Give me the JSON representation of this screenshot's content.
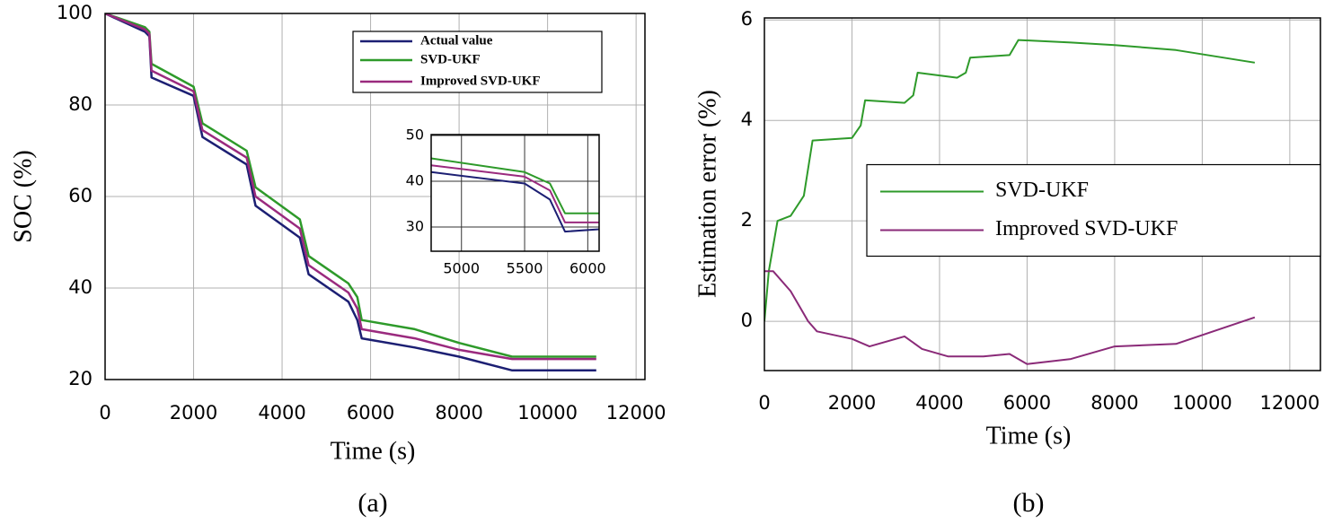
{
  "chart_data": [
    {
      "type": "line",
      "caption": "(a)",
      "xlabel": "Time (s)",
      "ylabel": "SOC (%)",
      "x": [
        0,
        900,
        1000,
        1050,
        2000,
        2200,
        3200,
        3400,
        4400,
        4600,
        5500,
        5700,
        5800,
        7000,
        8000,
        9200,
        11100
      ],
      "series": [
        {
          "name": "Actual value",
          "color": "#1c1f73",
          "values": [
            100,
            96,
            95,
            86,
            82,
            73,
            67,
            58,
            51,
            43,
            37,
            33,
            29,
            27,
            25,
            22,
            22
          ]
        },
        {
          "name": "SVD-UKF",
          "color": "#2e9a2a",
          "values": [
            100,
            97,
            96,
            89,
            84,
            76,
            70,
            62,
            55,
            47,
            41,
            38,
            33,
            31,
            28,
            25,
            25
          ]
        },
        {
          "name": "Improved SVD-UKF",
          "color": "#9a2a7e",
          "values": [
            100,
            96.5,
            95.5,
            87.5,
            83,
            74.5,
            68.5,
            60,
            53,
            45,
            39,
            35.5,
            31,
            29,
            26.5,
            24.5,
            24.5
          ]
        }
      ],
      "xlim": [
        0,
        12200
      ],
      "xticks": [
        0,
        2000,
        4000,
        6000,
        8000,
        10000,
        12000
      ],
      "ylim": [
        20,
        100
      ],
      "yticks": [
        20,
        40,
        60,
        80,
        100
      ],
      "grid": true,
      "legend": "upper right"
    },
    {
      "type": "line",
      "x": [
        4760,
        5500,
        5700,
        5820,
        6090
      ],
      "series": [
        {
          "name": "Actual value",
          "color": "#1c1f73",
          "values": [
            42,
            39.5,
            36,
            29,
            29.5
          ]
        },
        {
          "name": "SVD-UKF",
          "color": "#2e9a2a",
          "values": [
            45,
            42,
            39.5,
            33,
            33
          ]
        },
        {
          "name": "Improved SVD-UKF",
          "color": "#9a2a7e",
          "values": [
            43.5,
            41,
            38,
            31,
            31
          ]
        }
      ],
      "xlim": [
        4760,
        6090
      ],
      "xticks": [
        5000,
        5500,
        6000
      ],
      "ylim": [
        24.7,
        50.2
      ],
      "yticks": [
        30,
        40,
        50
      ],
      "grid": true
    },
    {
      "type": "line",
      "caption": "(b)",
      "xlabel": "Time (s)",
      "ylabel": "Estimation error (%)",
      "series": [
        {
          "name": "SVD-UKF",
          "color": "#2e9a2a",
          "x": [
            0,
            100,
            300,
            600,
            900,
            1100,
            2000,
            2200,
            2300,
            3200,
            3400,
            3500,
            4400,
            4600,
            4700,
            5600,
            5800,
            7000,
            8000,
            9400,
            11200
          ],
          "values": [
            0,
            1.0,
            2.0,
            2.1,
            2.5,
            3.6,
            3.65,
            3.9,
            4.4,
            4.35,
            4.5,
            4.95,
            4.85,
            4.95,
            5.25,
            5.3,
            5.6,
            5.55,
            5.5,
            5.4,
            5.15
          ]
        },
        {
          "name": "Improved SVD-UKF",
          "color": "#8a2a78",
          "x": [
            0,
            200,
            600,
            1000,
            1200,
            2000,
            2400,
            3200,
            3600,
            4200,
            5000,
            5600,
            6000,
            7000,
            8000,
            9400,
            11200
          ],
          "values": [
            1.0,
            1.0,
            0.6,
            0.0,
            -0.2,
            -0.35,
            -0.5,
            -0.3,
            -0.55,
            -0.7,
            -0.7,
            -0.65,
            -0.85,
            -0.75,
            -0.5,
            -0.45,
            0.08
          ]
        }
      ],
      "xlim": [
        0,
        12700
      ],
      "xticks": [
        0,
        2000,
        4000,
        6000,
        8000,
        10000,
        12000
      ],
      "ylim": [
        -0.98,
        6.04
      ],
      "yticks": [
        0,
        2,
        4,
        6
      ],
      "grid": true,
      "legend": "center right"
    }
  ]
}
